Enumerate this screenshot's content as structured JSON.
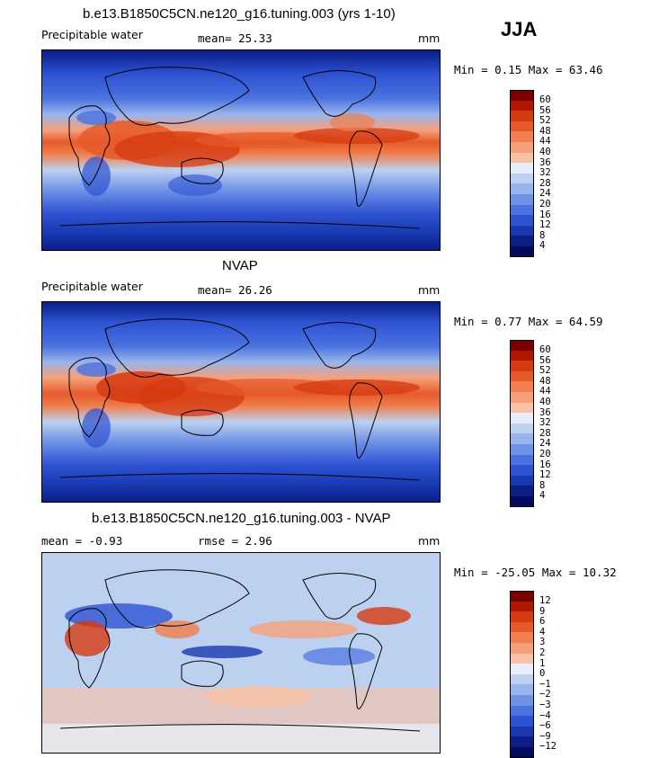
{
  "season": "JJA",
  "panels": [
    {
      "title": "b.e13.B1850C5CN.ne120_g16.tuning.003 (yrs 1-10)",
      "left_label": "Precipitable water",
      "mean_text": "mean=  25.33",
      "units": "mm",
      "minmax": "Min =   0.15 Max =  63.46",
      "type": "model"
    },
    {
      "title": "NVAP",
      "left_label": "Precipitable water",
      "mean_text": "mean=  26.26",
      "units": "mm",
      "minmax": "Min =   0.77 Max =  64.59",
      "type": "obs"
    },
    {
      "title": "b.e13.B1850C5CN.ne120_g16.tuning.003 - NVAP",
      "left_label": "mean =  -0.93",
      "mean_text": "rmse =   2.96",
      "units": "mm",
      "minmax": "Min = -25.05 Max =  10.32",
      "type": "diff"
    }
  ],
  "chart_data": [
    {
      "type": "heatmap",
      "title": "b.e13.B1850C5CN.ne120_g16.tuning.003 (yrs 1-10)",
      "variable": "Precipitable water",
      "units": "mm",
      "mean": 25.33,
      "min": 0.15,
      "max": 63.46,
      "levels": [
        4,
        8,
        12,
        16,
        20,
        24,
        28,
        32,
        36,
        40,
        44,
        48,
        52,
        56,
        60
      ]
    },
    {
      "type": "heatmap",
      "title": "NVAP",
      "variable": "Precipitable water",
      "units": "mm",
      "mean": 26.26,
      "min": 0.77,
      "max": 64.59,
      "levels": [
        4,
        8,
        12,
        16,
        20,
        24,
        28,
        32,
        36,
        40,
        44,
        48,
        52,
        56,
        60
      ]
    },
    {
      "type": "heatmap",
      "title": "b.e13.B1850C5CN.ne120_g16.tuning.003 - NVAP",
      "units": "mm",
      "mean": -0.93,
      "rmse": 2.96,
      "min": -25.05,
      "max": 10.32,
      "levels": [
        -12,
        -9,
        -6,
        -4,
        -3,
        -2,
        -1,
        0,
        1,
        2,
        3,
        4,
        6,
        9,
        12
      ]
    }
  ],
  "colorbars": {
    "abs_ticks": [
      "60",
      "56",
      "52",
      "48",
      "44",
      "40",
      "36",
      "32",
      "28",
      "24",
      "20",
      "16",
      "12",
      "8",
      "4"
    ],
    "diff_ticks": [
      "12",
      "9",
      "6",
      "4",
      "3",
      "2",
      "1",
      "0",
      "−1",
      "−2",
      "−3",
      "−4",
      "−6",
      "−9",
      "−12"
    ],
    "colors": [
      "#7a0000",
      "#b01800",
      "#d63a10",
      "#e65a2a",
      "#f07e4e",
      "#f6a07a",
      "#f9c2a6",
      "#e8eef8",
      "#bcd0f0",
      "#98b4ec",
      "#6e92e6",
      "#4a72e0",
      "#2d52d2",
      "#1838b0",
      "#0a1e86",
      "#020a5e"
    ]
  }
}
